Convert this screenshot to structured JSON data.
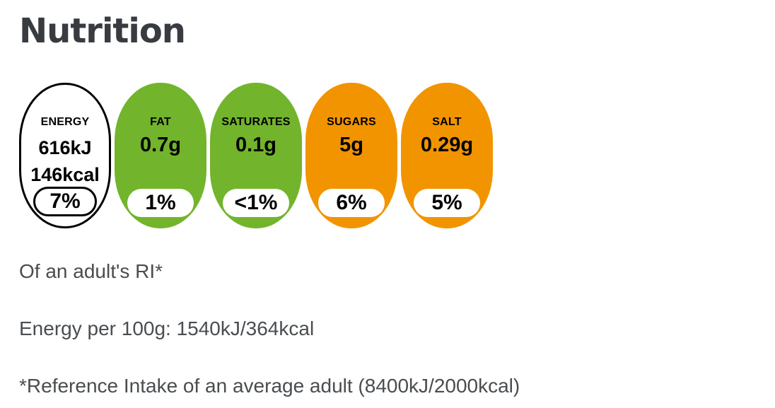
{
  "title": "Nutrition",
  "colors": {
    "background": "#ffffff",
    "title_text": "#383c41",
    "body_text": "#494d50",
    "pill_text": "#000000",
    "green": "#72b42c",
    "orange": "#f29400",
    "energy_outline": "#000000",
    "ri_badge_background": "#ffffff"
  },
  "pills": [
    {
      "name": "energy",
      "label": "ENERGY",
      "values": [
        "616kJ",
        "146kcal"
      ],
      "ri_percent": "7%",
      "color": "#ffffff"
    },
    {
      "name": "fat",
      "label": "FAT",
      "values": [
        "0.7g"
      ],
      "ri_percent": "1%",
      "color": "#72b42c"
    },
    {
      "name": "saturates",
      "label": "SATURATES",
      "values": [
        "0.1g"
      ],
      "ri_percent": "<1%",
      "color": "#72b42c"
    },
    {
      "name": "sugars",
      "label": "SUGARS",
      "values": [
        "5g"
      ],
      "ri_percent": "6%",
      "color": "#f29400"
    },
    {
      "name": "salt",
      "label": "SALT",
      "values": [
        "0.29g"
      ],
      "ri_percent": "5%",
      "color": "#f29400"
    }
  ],
  "footnotes": {
    "ri_note": "Of an adult's RI*",
    "energy_per_100g": "Energy per 100g: 1540kJ/364kcal",
    "reference_intake": "*Reference Intake of an average adult (8400kJ/2000kcal)"
  }
}
